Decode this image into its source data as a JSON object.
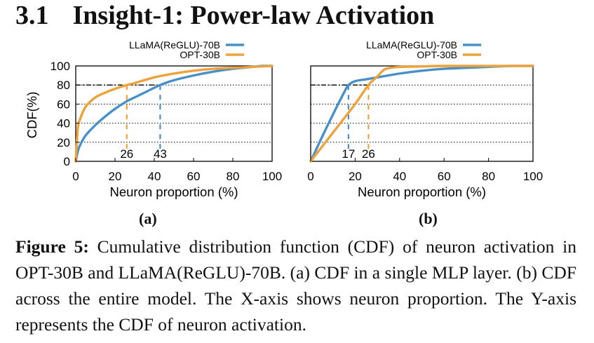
{
  "section": {
    "number": "3.1",
    "title": "Insight-1: Power-law Activation"
  },
  "colors": {
    "llama": "#4a90c8",
    "opt": "#eda33a",
    "axis": "#000000"
  },
  "chart_data": [
    {
      "type": "line",
      "panel_label": "(a)",
      "xlabel": "Neuron proportion (%)",
      "ylabel": "CDF(%)",
      "xlim": [
        0,
        100
      ],
      "ylim": [
        0,
        100
      ],
      "xticks": [
        0,
        20,
        40,
        60,
        80,
        100
      ],
      "yticks": [
        0,
        20,
        40,
        60,
        80,
        100
      ],
      "grid": "dotted horizontal at 20,40,60,80",
      "legend": "top-right",
      "series": [
        {
          "name": "LLaMA(ReGLU)-70B",
          "color": "#4a90c8",
          "x": [
            0,
            1,
            2,
            5,
            10,
            15,
            20,
            26,
            30,
            35,
            43,
            50,
            60,
            70,
            80,
            90,
            95,
            100
          ],
          "y": [
            0,
            10,
            16,
            27,
            38,
            47,
            55,
            63,
            67,
            72,
            80,
            85,
            90,
            94,
            97,
            99,
            100,
            100
          ]
        },
        {
          "name": "OPT-30B",
          "color": "#eda33a",
          "x": [
            0,
            1,
            2,
            5,
            10,
            15,
            20,
            26,
            30,
            40,
            50,
            60,
            70,
            80,
            90,
            100
          ],
          "y": [
            0,
            33,
            43,
            57,
            67,
            72,
            76,
            80,
            82,
            88,
            92,
            95,
            97,
            98,
            99,
            100
          ]
        }
      ],
      "annotations": [
        {
          "text": "26",
          "x": 26,
          "y": 80,
          "series": "OPT-30B"
        },
        {
          "text": "43",
          "x": 43,
          "y": 80,
          "series": "LLaMA(ReGLU)-70B"
        }
      ]
    },
    {
      "type": "line",
      "panel_label": "(b)",
      "xlabel": "Neuron proportion (%)",
      "ylabel": "",
      "xlim": [
        0,
        100
      ],
      "ylim": [
        0,
        100
      ],
      "xticks": [
        0,
        20,
        40,
        60,
        80,
        100
      ],
      "grid": "dotted horizontal at 20,40,60,80",
      "legend": "top-right",
      "series": [
        {
          "name": "LLaMA(ReGLU)-70B",
          "color": "#4a90c8",
          "x": [
            0,
            5,
            10,
            15,
            17,
            20,
            25,
            30,
            40,
            50,
            60,
            70,
            80,
            90,
            100
          ],
          "y": [
            0,
            25,
            49,
            72,
            80,
            84,
            86,
            88,
            92,
            95,
            97,
            98,
            99,
            100,
            100
          ]
        },
        {
          "name": "OPT-30B",
          "color": "#eda33a",
          "x": [
            0,
            5,
            10,
            15,
            20,
            26,
            30,
            33,
            36,
            40,
            50,
            60,
            80,
            100
          ],
          "y": [
            0,
            15,
            30,
            45,
            60,
            80,
            89,
            96,
            98,
            99,
            99.5,
            100,
            100,
            100
          ]
        }
      ],
      "annotations": [
        {
          "text": "17",
          "x": 17,
          "y": 80,
          "series": "LLaMA(ReGLU)-70B"
        },
        {
          "text": "26",
          "x": 26,
          "y": 80,
          "series": "OPT-30B"
        }
      ]
    }
  ],
  "caption": {
    "label": "Figure 5:",
    "text": " Cumulative distribution function (CDF) of neuron activation in OPT-30B and LLaMA(ReGLU)-70B. (a) CDF in a single MLP layer. (b) CDF across the entire model. The X-axis shows neuron proportion. The Y-axis represents the CDF of neuron activation."
  }
}
